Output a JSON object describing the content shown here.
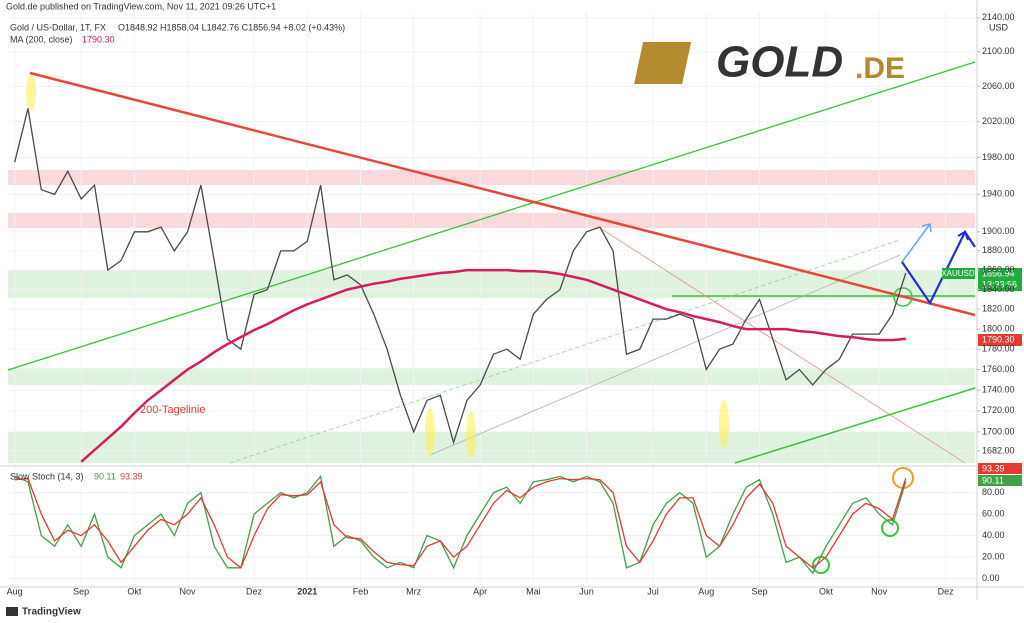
{
  "publisher": "Gold.de published on TradingView.com, Nov 11, 2021 09:26 UTC+1",
  "footer": "TradingView",
  "logo": {
    "main": "GOLD",
    "suffix": ".DE"
  },
  "chart_data": {
    "type": "line",
    "title": "Gold / US-Dollar, 1T, FX",
    "ohlc_text": "O1848.92 H1858.04 L1842.76 C1856.94 +8.02 (+0.43%)",
    "y_unit": "USD",
    "annotation": "200-Tagelinie",
    "log_scale": true,
    "grid": true,
    "price_tag": {
      "symbol": "XAUUSD",
      "price": "1856.94",
      "countdown": "13:33:56",
      "color": "#22ab3f"
    },
    "ma_tag": {
      "text": "1790.30",
      "color": "#e53935"
    },
    "stoch_label": "Slow Stoch (14, 3)",
    "categories": [
      "Aug",
      null,
      null,
      null,
      null,
      "Sep",
      null,
      null,
      null,
      "Okt",
      null,
      null,
      null,
      "Nov",
      null,
      null,
      null,
      null,
      "Dez",
      null,
      null,
      null,
      "2021",
      null,
      null,
      null,
      "Feb",
      null,
      null,
      null,
      "Mrz",
      null,
      null,
      null,
      null,
      "Apr",
      null,
      null,
      null,
      "Mai",
      null,
      null,
      null,
      "Jun",
      null,
      null,
      null,
      null,
      "Jul",
      null,
      null,
      null,
      "Aug",
      null,
      null,
      null,
      "Sep",
      null,
      null,
      null,
      null,
      "Okt",
      null,
      null,
      null,
      "Nov",
      null,
      null,
      null,
      null,
      "Dez",
      null,
      null
    ],
    "ylim": [
      1669,
      2147
    ],
    "yticks": [
      {
        "value": 2140,
        "label": "2140.00"
      },
      {
        "value": 2100,
        "label": "2100.00"
      },
      {
        "value": 2060,
        "label": "2060.00"
      },
      {
        "value": 2020,
        "label": "2020.00"
      },
      {
        "value": 1980,
        "label": "1980.00"
      },
      {
        "value": 1940,
        "label": "1940.00"
      },
      {
        "value": 1900,
        "label": "1900.00"
      },
      {
        "value": 1880,
        "label": "1880.00"
      },
      {
        "value": 1860,
        "label": "1860.00"
      },
      {
        "value": 1840,
        "label": "1840.00"
      },
      {
        "value": 1820,
        "label": "1820.00"
      },
      {
        "value": 1800,
        "label": "1800.00"
      },
      {
        "value": 1780,
        "label": "1780.00"
      },
      {
        "value": 1760,
        "label": "1760.00"
      },
      {
        "value": 1740,
        "label": "1740.00"
      },
      {
        "value": 1720,
        "label": "1720.00"
      },
      {
        "value": 1700,
        "label": "1700.00"
      },
      {
        "value": 1682,
        "label": "1682.00"
      }
    ],
    "y2lim": [
      -6,
      101
    ],
    "y2ticks": [
      {
        "value": 80,
        "label": "80.00"
      },
      {
        "value": 60,
        "label": "60.00"
      },
      {
        "value": 40,
        "label": "40.00"
      },
      {
        "value": 20,
        "label": "20.00"
      },
      {
        "value": 0,
        "label": "0.00"
      }
    ],
    "series": [
      {
        "name": "Gold / US-Dollar, 1T, FX",
        "color": "#4a4a4a",
        "values": [
          1975,
          2035,
          1945,
          1940,
          1965,
          1935,
          1950,
          1860,
          1870,
          1900,
          1900,
          1905,
          1880,
          1900,
          1950,
          1870,
          1790,
          1780,
          1835,
          1840,
          1880,
          1880,
          1890,
          1950,
          1850,
          1855,
          1845,
          1815,
          1780,
          1735,
          1700,
          1730,
          1735,
          1690,
          1730,
          1745,
          1775,
          1780,
          1770,
          1815,
          1830,
          1840,
          1880,
          1900,
          1905,
          1880,
          1775,
          1780,
          1810,
          1810,
          1815,
          1810,
          1760,
          1780,
          1785,
          1810,
          1830,
          1790,
          1750,
          1760,
          1745,
          1760,
          1770,
          1795,
          1795,
          1795,
          1815,
          1856.94,
          null,
          null,
          null,
          null,
          null
        ]
      },
      {
        "name": "MA (200, close)",
        "color": "#d81b60",
        "legend_value": "1790.30",
        "values": [
          null,
          null,
          null,
          null,
          null,
          1672,
          1683,
          1694,
          1705,
          1718,
          1730,
          1740,
          1750,
          1760,
          1768,
          1777,
          1785,
          1792,
          1799,
          1805,
          1812,
          1819,
          1825,
          1830,
          1835,
          1840,
          1843,
          1846,
          1848,
          1851,
          1853,
          1855,
          1857,
          1858,
          1860,
          1860,
          1860,
          1860,
          1859,
          1859,
          1858,
          1856,
          1853,
          1850,
          1845,
          1840,
          1835,
          1830,
          1825,
          1820,
          1817,
          1813,
          1810,
          1807,
          1803,
          1800,
          1800,
          1800,
          1800,
          1798,
          1797,
          1795,
          1793,
          1792,
          1790,
          1789,
          1789,
          1790.3,
          null,
          null,
          null,
          null,
          null
        ]
      },
      {
        "axis": "y2",
        "color": "#43a047",
        "legend_value": "90.11",
        "values": [
          95,
          90,
          40,
          30,
          50,
          30,
          60,
          20,
          10,
          40,
          50,
          60,
          40,
          70,
          80,
          30,
          10,
          10,
          60,
          70,
          80,
          75,
          80,
          95,
          30,
          40,
          35,
          20,
          10,
          15,
          10,
          40,
          35,
          10,
          40,
          60,
          80,
          85,
          70,
          90,
          92,
          95,
          90,
          95,
          90,
          70,
          10,
          15,
          50,
          70,
          80,
          70,
          20,
          30,
          60,
          85,
          92,
          60,
          15,
          20,
          5,
          30,
          50,
          70,
          75,
          60,
          50,
          90.11,
          null,
          null,
          null,
          null,
          null
        ]
      },
      {
        "axis": "y2",
        "color": "#e53935",
        "legend_value": "93.39",
        "values": [
          92,
          93,
          60,
          35,
          45,
          40,
          50,
          35,
          15,
          30,
          45,
          55,
          50,
          60,
          75,
          50,
          20,
          10,
          40,
          65,
          78,
          77,
          78,
          90,
          50,
          38,
          37,
          25,
          15,
          13,
          12,
          30,
          35,
          20,
          30,
          50,
          70,
          82,
          75,
          85,
          90,
          93,
          92,
          93,
          92,
          80,
          30,
          15,
          35,
          60,
          75,
          75,
          40,
          30,
          50,
          75,
          88,
          70,
          30,
          20,
          10,
          20,
          40,
          60,
          70,
          65,
          55,
          93.39,
          null,
          null,
          null,
          null,
          null
        ]
      }
    ]
  }
}
